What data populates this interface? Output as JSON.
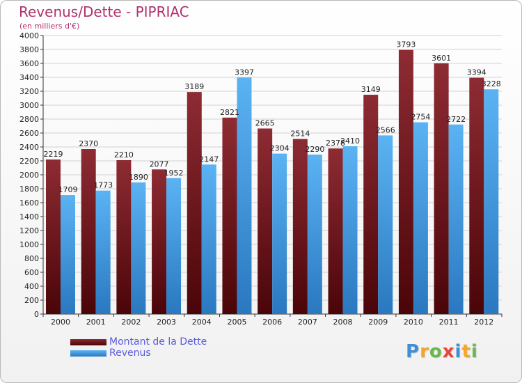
{
  "chart_data": {
    "type": "bar",
    "title": "Revenus/Dette - PIPRIAC",
    "subtitle": "(en milliers d'€)",
    "categories": [
      "2000",
      "2001",
      "2002",
      "2003",
      "2004",
      "2005",
      "2006",
      "2007",
      "2008",
      "2009",
      "2010",
      "2011",
      "2012"
    ],
    "series": [
      {
        "name": "Montant de la Dette",
        "color": "#7a1c22",
        "values": [
          2219,
          2370,
          2210,
          2077,
          3189,
          2821,
          2665,
          2514,
          2378,
          3149,
          3793,
          3601,
          3394
        ]
      },
      {
        "name": "Revenus",
        "color": "#4aa3e8",
        "values": [
          1709,
          1773,
          1890,
          1952,
          2147,
          3397,
          2304,
          2290,
          2410,
          2566,
          2754,
          2722,
          3228
        ]
      }
    ],
    "ylim": [
      0,
      4000
    ],
    "yticks": [
      0,
      200,
      400,
      600,
      800,
      1000,
      1200,
      1400,
      1600,
      1800,
      2000,
      2200,
      2400,
      2600,
      2800,
      3000,
      3200,
      3400,
      3600,
      3800,
      4000
    ],
    "grid": true,
    "legend_position": "bottom-left"
  },
  "logo": {
    "letters": [
      {
        "char": "P",
        "color": "#3f8ed8"
      },
      {
        "char": "r",
        "color": "#f5a623"
      },
      {
        "char": "o",
        "color": "#6bb84a"
      },
      {
        "char": "x",
        "color": "#e8443a"
      },
      {
        "char": "i",
        "color": "#3f8ed8"
      },
      {
        "char": "t",
        "color": "#f5a623"
      },
      {
        "char": "i",
        "color": "#6bb84a"
      }
    ]
  }
}
